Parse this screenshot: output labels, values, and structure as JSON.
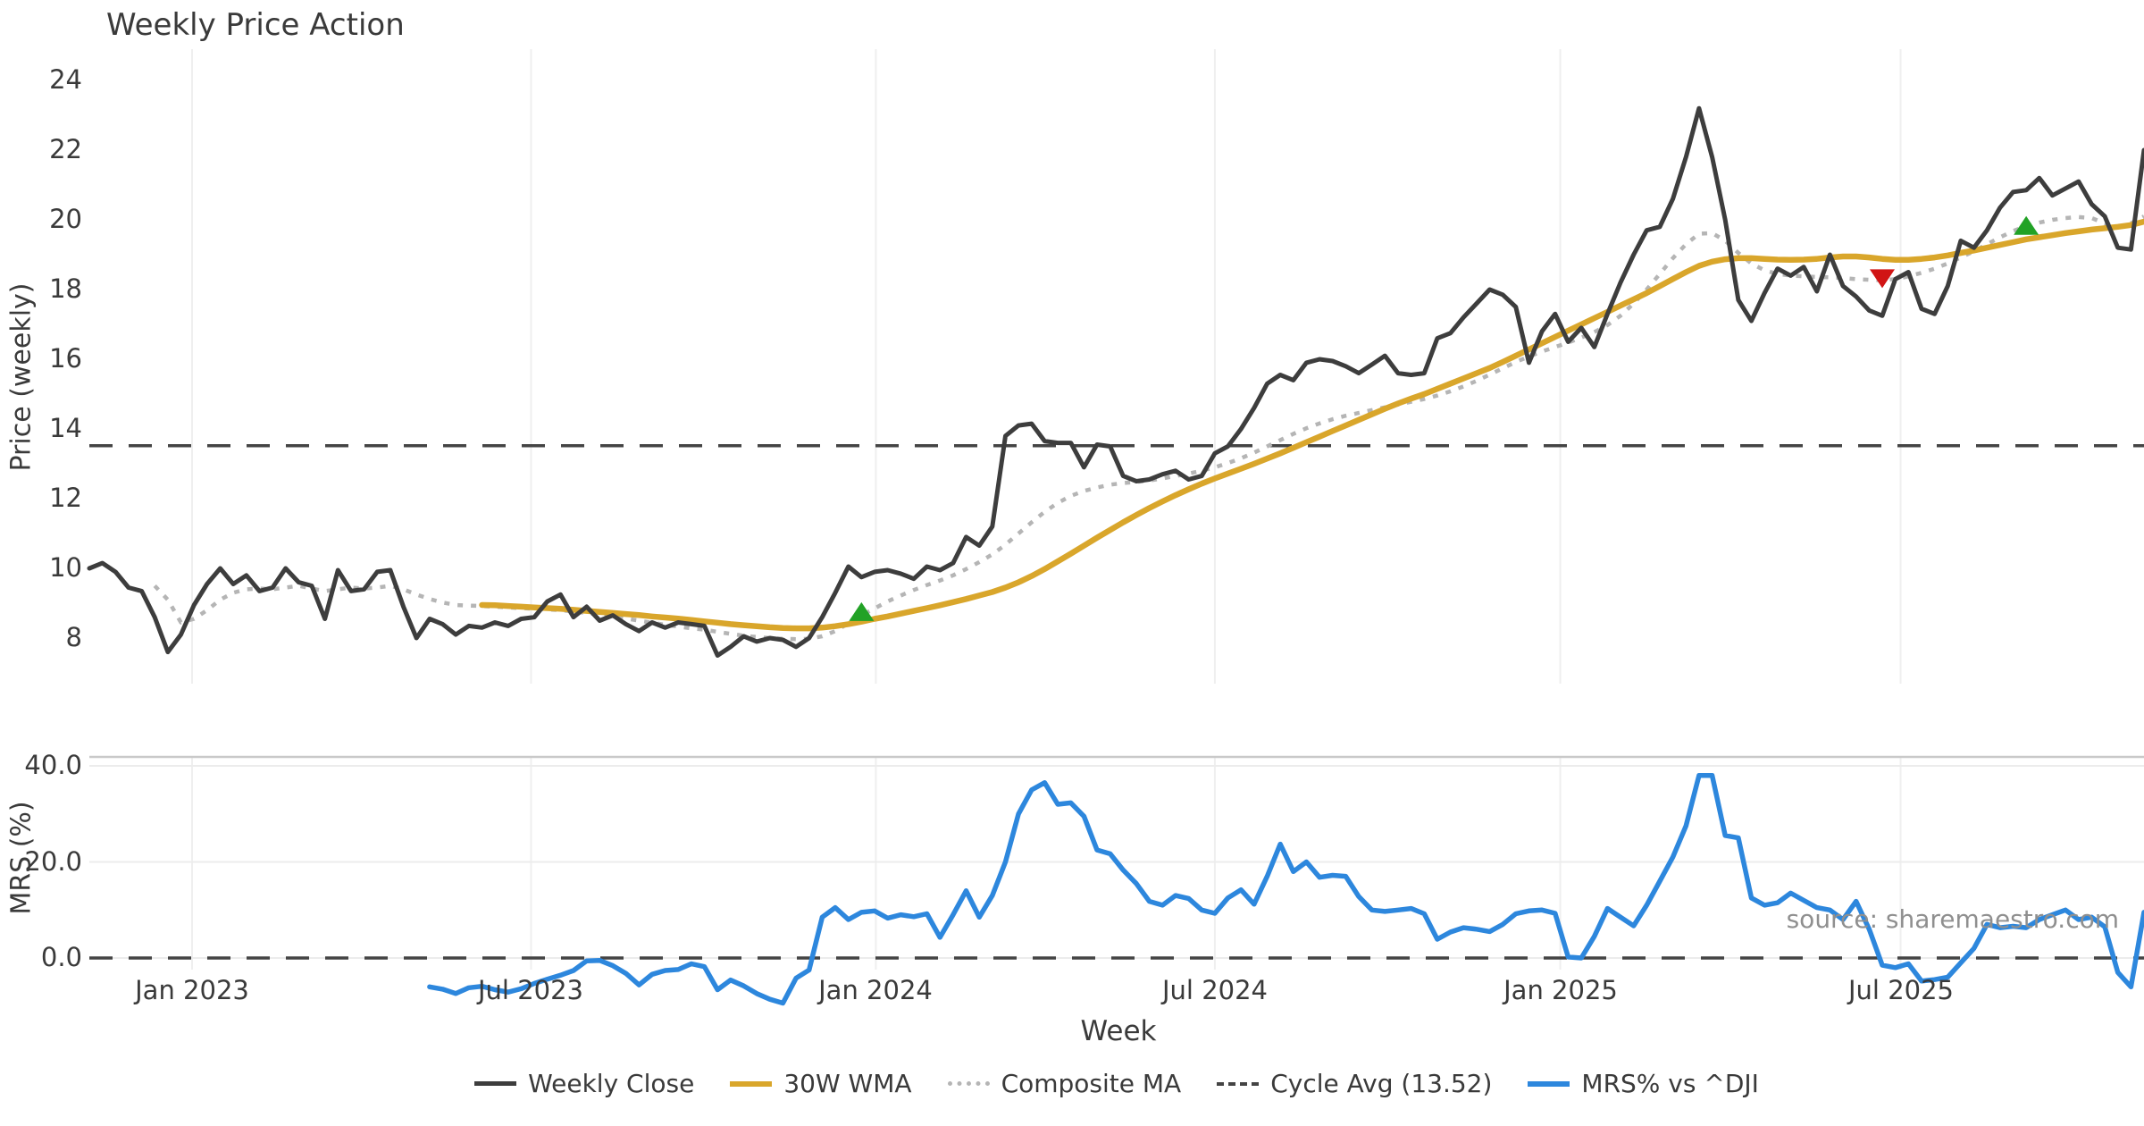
{
  "title": "Weekly Price Action",
  "xlabel": "Week",
  "source_note": "source: sharemaestro.com",
  "colors": {
    "weekly_close": "#3d3d3d",
    "wma_30w": "#d9a62b",
    "composite_ma": "#b5b5b5",
    "cycle_avg": "#444444",
    "mrs_line": "#2d87dd",
    "buy_marker": "#22a226",
    "sell_marker": "#d11414",
    "gridline": "#efefef",
    "axis_spine": "#c9c9c9",
    "tick_text": "#3a3a3a",
    "source_text": "#8f8f8f"
  },
  "legend": [
    {
      "label": "Weekly Close",
      "color": "#3d3d3d",
      "style": "solid",
      "weight": 5
    },
    {
      "label": "30W WMA",
      "color": "#d9a62b",
      "style": "solid",
      "weight": 6
    },
    {
      "label": "Composite MA",
      "color": "#b5b5b5",
      "style": "dotted",
      "weight": 5
    },
    {
      "label": "Cycle Avg (13.52)",
      "color": "#444444",
      "style": "dashed",
      "weight": 4
    },
    {
      "label": "MRS% vs ^DJI",
      "color": "#2d87dd",
      "style": "solid",
      "weight": 6
    }
  ],
  "chart_data": [
    {
      "type": "line",
      "panel": "price",
      "title": "Weekly Price Action",
      "ylabel": "Price (weekly)",
      "ylim": [
        6.0,
        24.8
      ],
      "yticks": [
        8,
        10,
        12,
        14,
        16,
        18,
        20,
        22,
        24
      ],
      "grid": "vertical-faint",
      "hline": {
        "value": 13.52,
        "label": "Cycle Avg (13.52)",
        "style": "dashed"
      },
      "x_unit": "week_index",
      "n_weeks": 158,
      "xticks": [
        {
          "label": "Jan 2023",
          "week": 7.85
        },
        {
          "label": "Jul 2023",
          "week": 33.75
        },
        {
          "label": "Jan 2024",
          "week": 60.1
        },
        {
          "label": "Jul 2024",
          "week": 86.0
        },
        {
          "label": "Jan 2025",
          "week": 112.4
        },
        {
          "label": "Jul 2025",
          "week": 138.4
        }
      ],
      "series": [
        {
          "name": "Weekly Close",
          "start_week": 0,
          "values": [
            10.0,
            10.15,
            9.9,
            9.45,
            9.35,
            8.6,
            7.6,
            8.1,
            8.95,
            9.55,
            10.0,
            9.55,
            9.8,
            9.35,
            9.45,
            10.0,
            9.6,
            9.5,
            8.55,
            9.95,
            9.35,
            9.4,
            9.9,
            9.95,
            8.9,
            8.0,
            8.55,
            8.4,
            8.1,
            8.35,
            8.3,
            8.45,
            8.35,
            8.55,
            8.6,
            9.05,
            9.25,
            8.6,
            8.9,
            8.5,
            8.65,
            8.4,
            8.2,
            8.45,
            8.3,
            8.45,
            8.4,
            8.35,
            7.5,
            7.75,
            8.05,
            7.9,
            8.0,
            7.95,
            7.75,
            8.0,
            8.6,
            9.3,
            10.05,
            9.75,
            9.9,
            9.95,
            9.85,
            9.7,
            10.05,
            9.95,
            10.15,
            10.9,
            10.65,
            11.2,
            13.8,
            14.1,
            14.15,
            13.65,
            13.6,
            13.6,
            12.9,
            13.55,
            13.5,
            12.65,
            12.5,
            12.55,
            12.7,
            12.8,
            12.55,
            12.65,
            13.3,
            13.5,
            14.0,
            14.6,
            15.3,
            15.55,
            15.4,
            15.9,
            16.0,
            15.95,
            15.8,
            15.6,
            15.85,
            16.1,
            15.6,
            15.55,
            15.6,
            16.6,
            16.75,
            17.2,
            17.6,
            18.0,
            17.85,
            17.5,
            15.9,
            16.8,
            17.3,
            16.5,
            16.9,
            16.35,
            17.3,
            18.2,
            19.0,
            19.7,
            19.8,
            20.6,
            21.8,
            23.2,
            21.8,
            20.0,
            17.7,
            17.1,
            17.9,
            18.6,
            18.4,
            18.65,
            17.95,
            19.0,
            18.1,
            17.8,
            17.4,
            17.25,
            18.3,
            18.5,
            17.45,
            17.3,
            18.1,
            19.4,
            19.2,
            19.7,
            20.35,
            20.8,
            20.85,
            21.2,
            20.7,
            20.9,
            21.1,
            20.45,
            20.1,
            19.2,
            19.15,
            22.0
          ]
        },
        {
          "name": "Composite MA",
          "start_week": 5,
          "values": [
            9.5,
            9.1,
            8.45,
            8.55,
            8.8,
            9.1,
            9.3,
            9.4,
            9.42,
            9.4,
            9.45,
            9.5,
            9.42,
            9.35,
            9.4,
            9.45,
            9.42,
            9.45,
            9.5,
            9.4,
            9.25,
            9.12,
            9.02,
            8.95,
            8.93,
            8.92,
            8.9,
            8.88,
            8.86,
            8.84,
            8.82,
            8.8,
            8.76,
            8.72,
            8.68,
            8.62,
            8.56,
            8.5,
            8.44,
            8.38,
            8.33,
            8.28,
            8.24,
            8.18,
            8.12,
            8.07,
            8.03,
            8.0,
            7.98,
            7.97,
            7.98,
            8.05,
            8.2,
            8.42,
            8.65,
            8.85,
            9.05,
            9.22,
            9.38,
            9.52,
            9.65,
            9.8,
            9.98,
            10.18,
            10.4,
            10.68,
            11.0,
            11.32,
            11.62,
            11.88,
            12.08,
            12.22,
            12.32,
            12.4,
            12.45,
            12.48,
            12.52,
            12.58,
            12.65,
            12.72,
            12.8,
            12.9,
            13.02,
            13.16,
            13.32,
            13.5,
            13.68,
            13.86,
            14.02,
            14.16,
            14.28,
            14.38,
            14.46,
            14.54,
            14.62,
            14.7,
            14.78,
            14.86,
            14.96,
            15.08,
            15.22,
            15.38,
            15.56,
            15.74,
            15.92,
            16.08,
            16.22,
            16.35,
            16.48,
            16.62,
            16.78,
            16.98,
            17.25,
            17.6,
            18.0,
            18.45,
            18.9,
            19.3,
            19.6,
            19.62,
            19.4,
            19.05,
            18.75,
            18.55,
            18.45,
            18.4,
            18.38,
            18.36,
            18.35,
            18.33,
            18.3,
            18.28,
            18.27,
            18.3,
            18.38,
            18.48,
            18.6,
            18.75,
            18.92,
            19.1,
            19.3,
            19.5,
            19.68,
            19.82,
            19.92,
            20.0,
            20.05,
            20.08,
            20.05,
            19.9,
            19.8,
            19.9,
            20.1
          ]
        },
        {
          "name": "30W WMA",
          "start_week": 30,
          "values": [
            8.95,
            8.94,
            8.92,
            8.9,
            8.88,
            8.86,
            8.84,
            8.81,
            8.78,
            8.75,
            8.72,
            8.69,
            8.66,
            8.62,
            8.59,
            8.56,
            8.52,
            8.48,
            8.44,
            8.4,
            8.37,
            8.34,
            8.31,
            8.29,
            8.28,
            8.28,
            8.3,
            8.34,
            8.4,
            8.47,
            8.55,
            8.62,
            8.7,
            8.78,
            8.86,
            8.94,
            9.03,
            9.12,
            9.22,
            9.32,
            9.45,
            9.6,
            9.78,
            9.98,
            10.2,
            10.42,
            10.65,
            10.88,
            11.1,
            11.32,
            11.53,
            11.73,
            11.92,
            12.1,
            12.27,
            12.43,
            12.58,
            12.72,
            12.86,
            13.0,
            13.15,
            13.3,
            13.46,
            13.62,
            13.78,
            13.94,
            14.1,
            14.26,
            14.42,
            14.58,
            14.73,
            14.87,
            15.0,
            15.15,
            15.3,
            15.45,
            15.6,
            15.75,
            15.92,
            16.1,
            16.28,
            16.46,
            16.64,
            16.82,
            17.0,
            17.18,
            17.36,
            17.54,
            17.72,
            17.9,
            18.1,
            18.3,
            18.5,
            18.68,
            18.8,
            18.87,
            18.9,
            18.9,
            18.88,
            18.86,
            18.85,
            18.86,
            18.88,
            18.92,
            18.95,
            18.95,
            18.92,
            18.88,
            18.85,
            18.85,
            18.88,
            18.92,
            18.98,
            19.05,
            19.12,
            19.2,
            19.28,
            19.36,
            19.44,
            19.5,
            19.56,
            19.62,
            19.67,
            19.72,
            19.76,
            19.8,
            19.85,
            19.95
          ]
        }
      ],
      "markers": [
        {
          "type": "buy",
          "shape": "triangle-up",
          "color": "#22a226",
          "week": 59,
          "value": 8.72
        },
        {
          "type": "sell",
          "shape": "triangle-down",
          "color": "#d11414",
          "week": 137,
          "value": 18.35
        },
        {
          "type": "buy",
          "shape": "triangle-up",
          "color": "#22a226",
          "week": 148,
          "value": 19.8
        }
      ]
    },
    {
      "type": "line",
      "panel": "mrs",
      "ylabel": "MRS (%)",
      "ylim": [
        -14,
        43
      ],
      "yticks": [
        0,
        20,
        40
      ],
      "ytick_labels": [
        "0.0",
        "20.0",
        "40.0"
      ],
      "grid": "horizontal-faint",
      "hline": {
        "value": 0,
        "style": "dashed"
      },
      "series": [
        {
          "name": "MRS% vs ^DJI",
          "start_week": 26,
          "values": [
            -6.0,
            -6.5,
            -7.4,
            -6.2,
            -5.9,
            -6.6,
            -7.1,
            -6.4,
            -5.3,
            -4.4,
            -3.6,
            -2.6,
            -0.6,
            -0.5,
            -1.6,
            -3.2,
            -5.6,
            -3.4,
            -2.6,
            -2.4,
            -1.2,
            -1.8,
            -6.6,
            -4.6,
            -5.8,
            -7.4,
            -8.6,
            -9.4,
            -4.2,
            -2.5,
            8.5,
            10.5,
            8.0,
            9.5,
            9.8,
            8.3,
            9.0,
            8.6,
            9.2,
            4.3,
            9.0,
            14.0,
            8.5,
            13.0,
            20.0,
            30.0,
            35.0,
            36.5,
            32.0,
            32.3,
            29.5,
            22.5,
            21.7,
            18.3,
            15.5,
            11.8,
            11.0,
            13.0,
            12.4,
            10.0,
            9.3,
            12.5,
            14.2,
            11.2,
            17.0,
            23.7,
            18.0,
            20.0,
            16.8,
            17.2,
            17.0,
            12.8,
            10.0,
            9.7,
            10.0,
            10.3,
            9.2,
            3.9,
            5.4,
            6.3,
            6.0,
            5.5,
            7.0,
            9.2,
            9.8,
            10.0,
            9.3,
            0.2,
            0.0,
            4.5,
            10.3,
            8.5,
            6.7,
            11.0,
            16.0,
            21.0,
            27.5,
            38.0,
            38.0,
            25.5,
            25.0,
            12.5,
            11.0,
            11.5,
            13.5,
            12.0,
            10.5,
            10.0,
            8.0,
            11.8,
            6.0,
            -1.5,
            -2.0,
            -1.2,
            -4.8,
            -4.5,
            -4.0,
            -1.0,
            2.0,
            7.0,
            6.3,
            6.6,
            6.3,
            8.0,
            9.0,
            10.0,
            8.0,
            8.5,
            6.5,
            -3.0,
            -6.0,
            9.5
          ]
        }
      ]
    }
  ]
}
